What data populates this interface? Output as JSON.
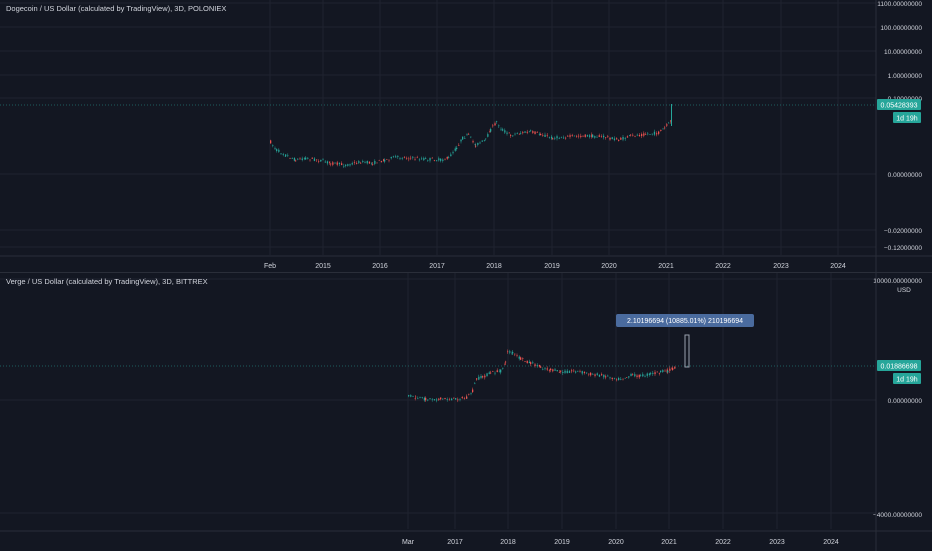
{
  "colors": {
    "background": "#131722",
    "grid": "#1f2330",
    "text": "#d1d4dc",
    "up": "#26a69a",
    "down": "#ef5350",
    "price_label": "#26a69a",
    "measure_box": "#4a6b9e"
  },
  "panels": [
    {
      "legend": "Dogecoin / US Dollar (calculated by TradingView), 3D, POLONIEX",
      "price_axis_ticks": [
        "1100.00000000",
        "100.00000000",
        "10.00000000",
        "1.00000000",
        "0.10000000",
        "0.00000000",
        "−0.02000000",
        "−0.12000000"
      ],
      "last_price": "0.05428393",
      "countdown": "1d 19h",
      "time_axis_ticks": [
        "Feb",
        "2015",
        "2016",
        "2017",
        "2018",
        "2019",
        "2020",
        "2021",
        "2022",
        "2023",
        "2024"
      ]
    },
    {
      "legend": "Verge / US Dollar (calculated by TradingView), 3D, BITTREX",
      "price_axis_ticks": [
        "10000.00000000",
        "0.00000000",
        "−4000.00000000"
      ],
      "currency": "USD",
      "last_price": "0.01886698",
      "countdown": "1d 19h",
      "measure_label": "2.10196694 (10885.01%) 210196694",
      "time_axis_ticks": [
        "Mar",
        "2017",
        "2018",
        "2019",
        "2020",
        "2021",
        "2022",
        "2023",
        "2024"
      ]
    }
  ],
  "chart_data": [
    {
      "type": "candlestick",
      "title": "Dogecoin / US Dollar (calculated by TradingView), 3D, POLONIEX",
      "x": [
        "2014-02",
        "2014-06",
        "2014-10",
        "2015-02",
        "2015-06",
        "2015-10",
        "2016-02",
        "2016-06",
        "2016-10",
        "2017-02",
        "2017-05",
        "2017-08",
        "2017-11",
        "2018-01",
        "2018-04",
        "2018-08",
        "2019-01",
        "2019-05",
        "2019-09",
        "2020-01",
        "2020-05",
        "2020-09",
        "2021-01",
        "2021-02"
      ],
      "y": [
        0.0015,
        0.0004,
        0.0002,
        0.0001,
        0.00015,
        0.00012,
        0.0002,
        0.0003,
        0.00025,
        0.0002,
        0.0008,
        0.002,
        0.0012,
        0.009,
        0.004,
        0.0028,
        0.0022,
        0.003,
        0.0025,
        0.0022,
        0.0023,
        0.0028,
        0.009,
        0.05428393
      ],
      "last_price": 0.05428393
    },
    {
      "type": "candlestick",
      "title": "Verge / US Dollar (calculated by TradingView), 3D, BITTREX",
      "x": [
        "2016-03",
        "2016-07",
        "2016-11",
        "2017-03",
        "2017-05",
        "2017-09",
        "2017-12",
        "2018-02",
        "2018-06",
        "2018-10",
        "2019-02",
        "2019-06",
        "2019-10",
        "2020-02",
        "2020-06",
        "2020-10",
        "2021-01",
        "2021-02"
      ],
      "y": [
        2e-05,
        1e-05,
        5e-06,
        1e-05,
        0.003,
        0.015,
        0.2,
        0.08,
        0.03,
        0.012,
        0.006,
        0.008,
        0.004,
        0.003,
        0.005,
        0.003,
        0.008,
        0.01886698
      ],
      "last_price": 0.01886698
    }
  ]
}
